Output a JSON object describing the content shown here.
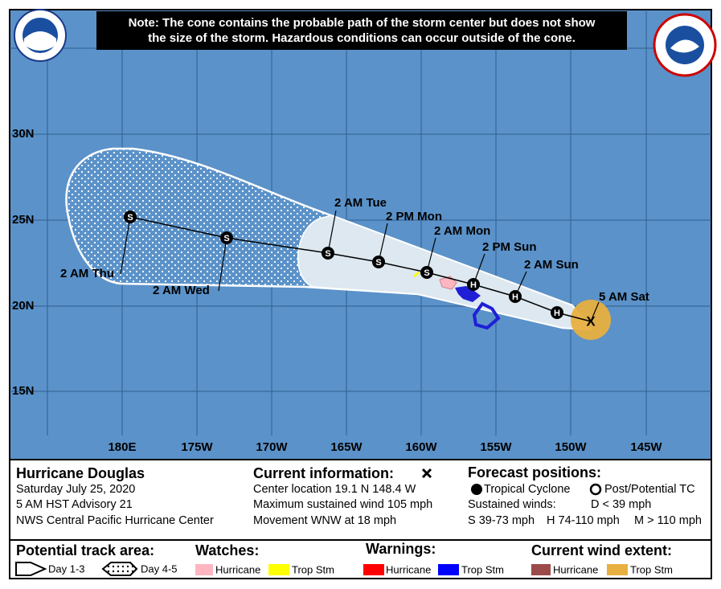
{
  "note": {
    "lines": [
      "Note: The cone contains the probable path of the storm center but does not show",
      "the size of the storm. Hazardous conditions can occur outside of the cone."
    ]
  },
  "map": {
    "lat_labels": [
      "30N",
      "25N",
      "20N",
      "15N"
    ],
    "lon_labels": [
      "180E",
      "175W",
      "170W",
      "165W",
      "160W",
      "155W",
      "150W",
      "145W"
    ],
    "track": [
      {
        "marker": "X",
        "label": "5 AM Sat"
      },
      {
        "marker": "H"
      },
      {
        "marker": "H",
        "label": "2 AM Sun"
      },
      {
        "marker": "H",
        "label": "2 PM Sun"
      },
      {
        "marker": "S",
        "label": "2 AM Mon"
      },
      {
        "marker": "S",
        "label": "2 PM Mon"
      },
      {
        "marker": "S",
        "label": "2 AM Tue"
      },
      {
        "marker": "S",
        "label": "2 AM Wed"
      },
      {
        "marker": "S",
        "label": "2 AM Thu"
      }
    ]
  },
  "info": {
    "storm": {
      "name": "Hurricane Douglas",
      "date": "Saturday July 25, 2020",
      "advisory": "5 AM HST Advisory 21",
      "center": "NWS Central Pacific Hurricane Center"
    },
    "current": {
      "title": "Current information:",
      "lines": [
        "Center location 19.1 N 148.4 W",
        "Maximum sustained wind 105 mph",
        "Movement WNW at 18 mph"
      ]
    },
    "forecast": {
      "title": "Forecast positions:",
      "tropical": "Tropical Cyclone",
      "post": "Post/Potential TC",
      "winds_title": "Sustained winds:",
      "d": "D < 39 mph",
      "s": "S 39-73 mph",
      "h": "H 74-110 mph",
      "m": "M > 110 mph"
    }
  },
  "legend": {
    "track_area": {
      "title": "Potential track area:",
      "day13": "Day 1-3",
      "day45": "Day 4-5"
    },
    "watches": {
      "title": "Watches:",
      "hurricane": "Hurricane",
      "trop": "Trop Stm"
    },
    "warnings": {
      "title": "Warnings:",
      "hurricane": "Hurricane",
      "trop": "Trop Stm"
    },
    "wind": {
      "title": "Current wind extent:",
      "hurricane": "Hurricane",
      "trop": "Trop Stm"
    }
  }
}
